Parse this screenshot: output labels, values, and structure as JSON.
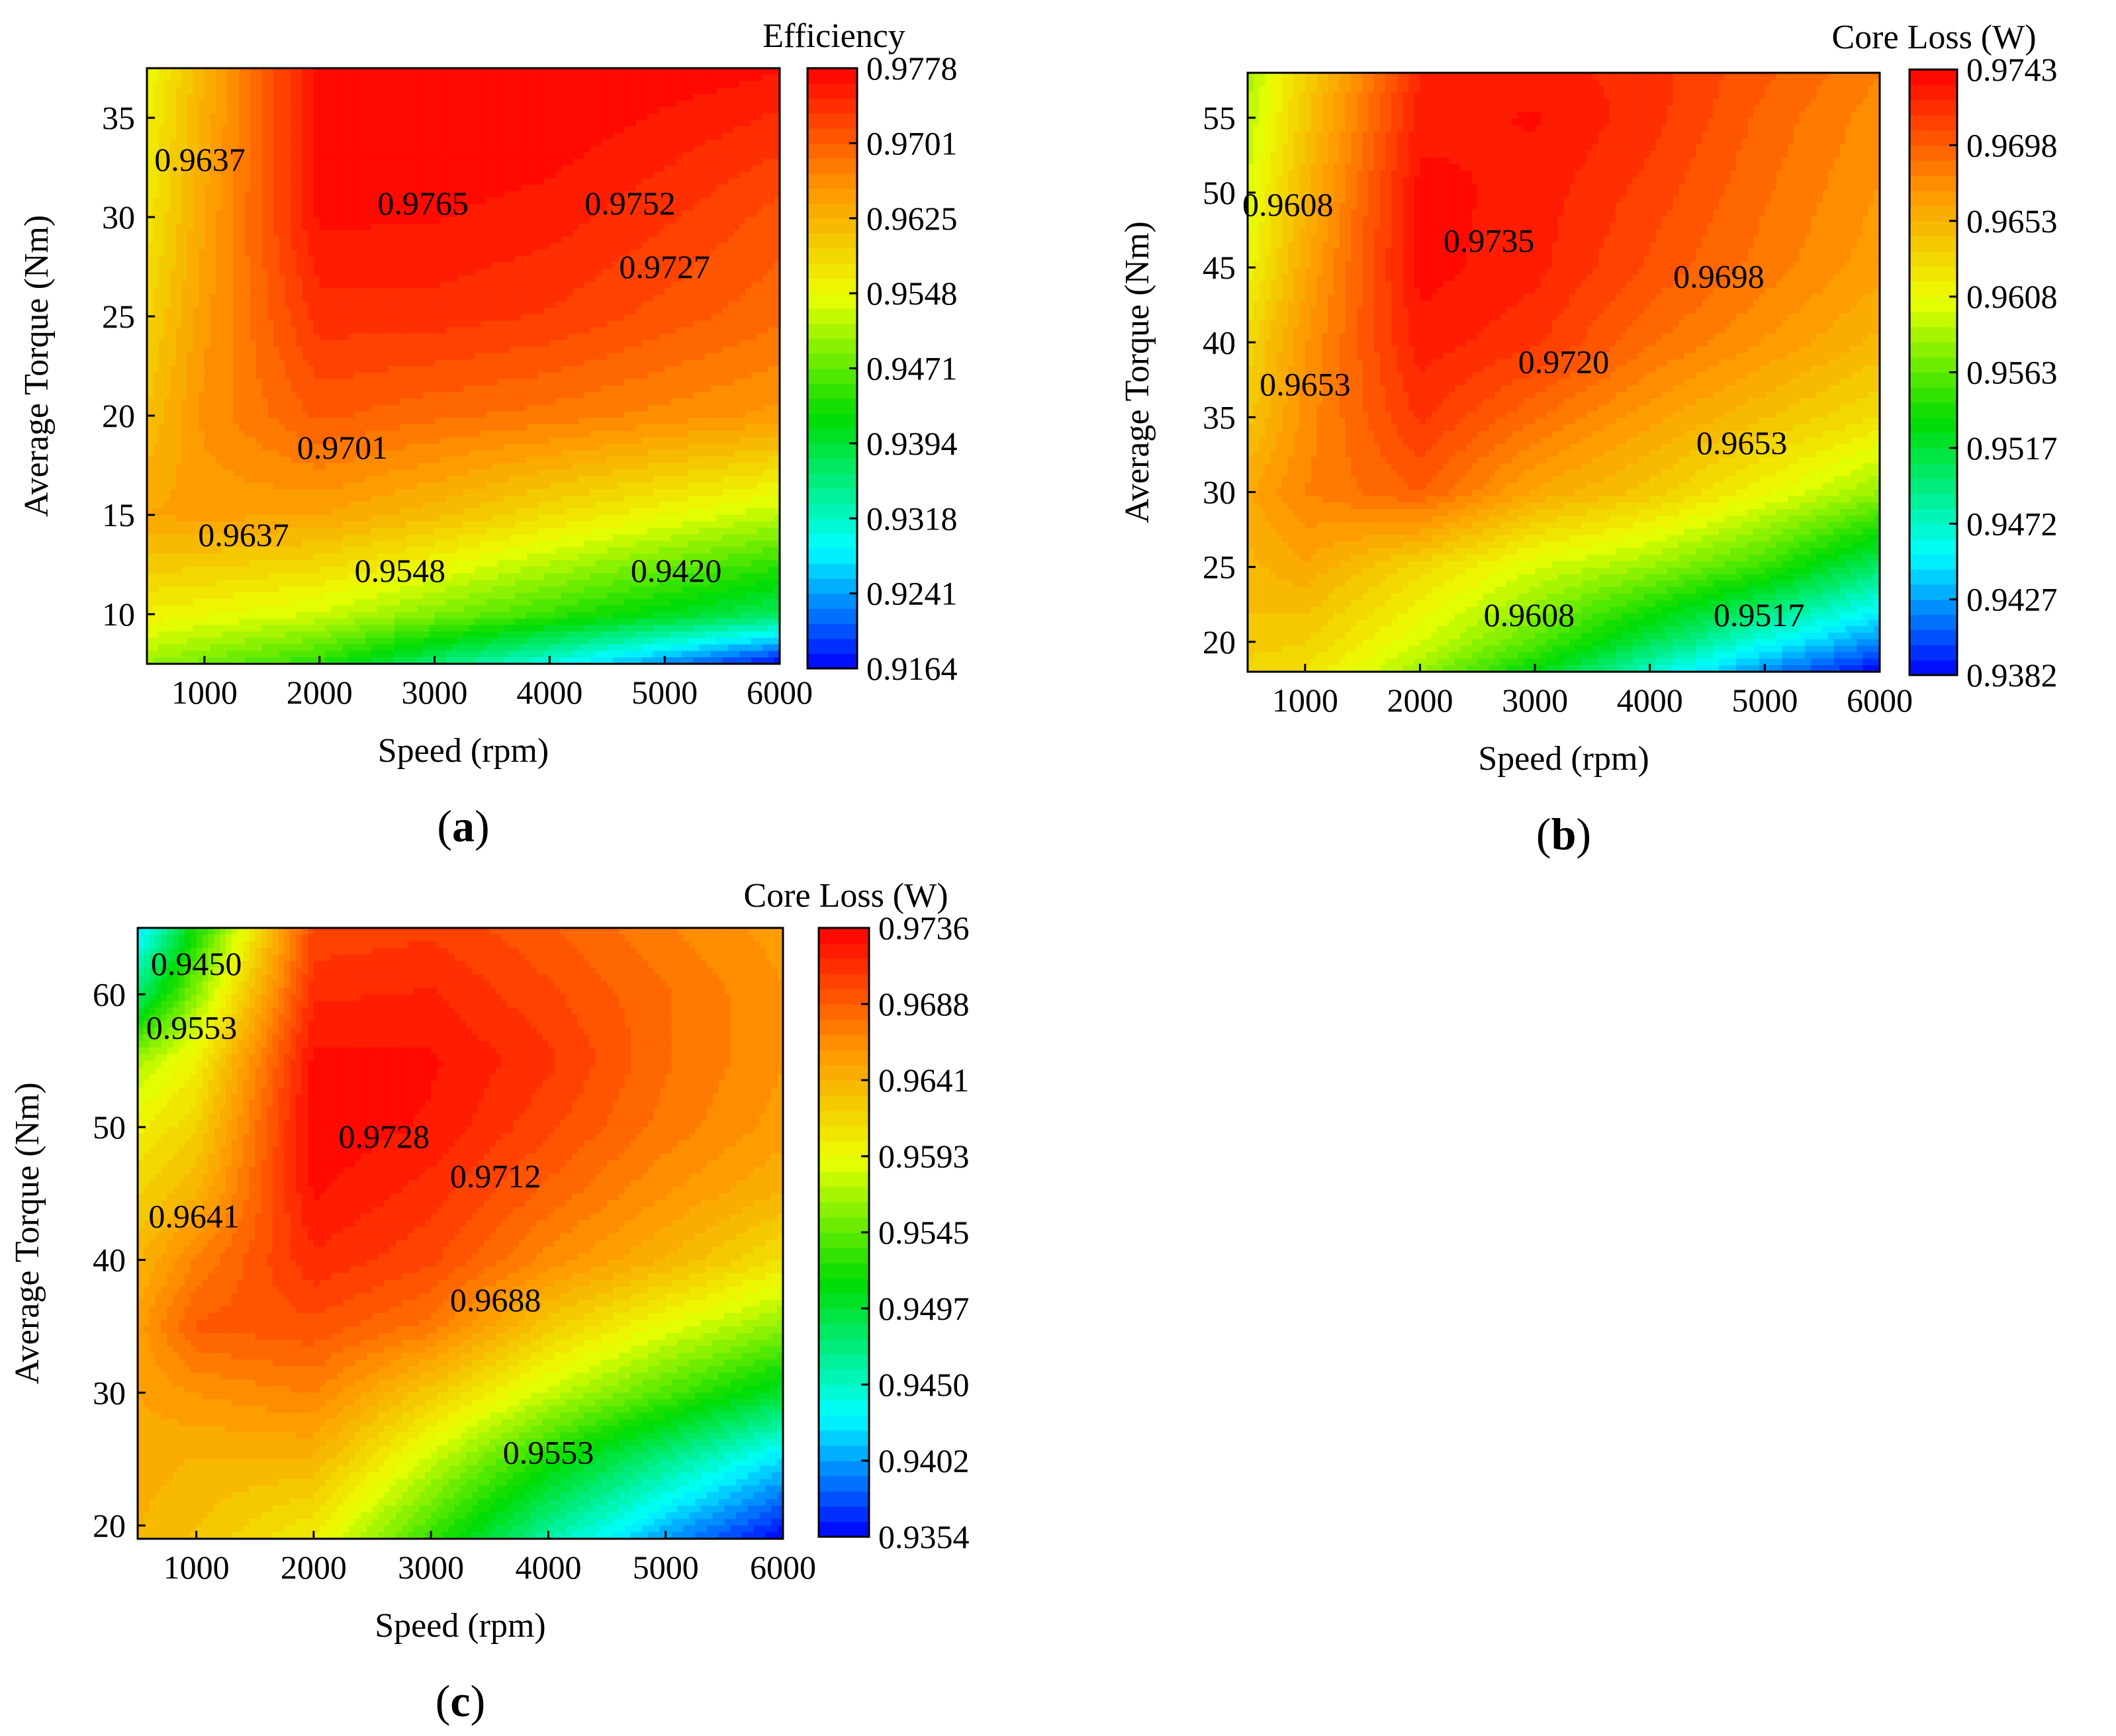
{
  "chart_data": [
    {
      "type": "heatmap",
      "subtype": "filled-contour",
      "panel_label": "a",
      "colorbar_title": "Efficiency",
      "xlabel": "Speed (rpm)",
      "ylabel": "Average Torque (Nm)",
      "xlim": [
        500,
        6000
      ],
      "ylim": [
        7.5,
        37.5
      ],
      "xticks": [
        "1000",
        "2000",
        "3000",
        "4000",
        "5000",
        "6000"
      ],
      "yticks": [
        "10",
        "15",
        "20",
        "25",
        "30",
        "35"
      ],
      "zrange": [
        0.9164,
        0.9778
      ],
      "colorbar_ticks": [
        "0.9778",
        "0.9701",
        "0.9625",
        "0.9548",
        "0.9471",
        "0.9394",
        "0.9318",
        "0.9241",
        "0.9164"
      ],
      "contour_labels": [
        {
          "text": "0.9637",
          "x": 960,
          "y": 32.9
        },
        {
          "text": "0.9765",
          "x": 2900,
          "y": 30.7
        },
        {
          "text": "0.9752",
          "x": 4700,
          "y": 30.7
        },
        {
          "text": "0.9727",
          "x": 5000,
          "y": 27.5
        },
        {
          "text": "0.9701",
          "x": 2200,
          "y": 18.4
        },
        {
          "text": "0.9637",
          "x": 1340,
          "y": 14.0
        },
        {
          "text": "0.9548",
          "x": 2700,
          "y": 12.2
        },
        {
          "text": "0.9420",
          "x": 5100,
          "y": 12.2
        }
      ],
      "z_grid": {
        "x": [
          500,
          1000,
          2000,
          3000,
          4000,
          5000,
          6000
        ],
        "y": [
          7.5,
          10,
          15,
          20,
          25,
          30,
          35,
          37.5
        ],
        "z": [
          [
            0.95,
            0.948,
            0.944,
            0.936,
            0.93,
            0.923,
            0.9164
          ],
          [
            0.956,
            0.955,
            0.953,
            0.949,
            0.945,
            0.941,
            0.937
          ],
          [
            0.964,
            0.9645,
            0.964,
            0.9615,
            0.958,
            0.955,
            0.952
          ],
          [
            0.961,
            0.966,
            0.9705,
            0.969,
            0.968,
            0.9665,
            0.965
          ],
          [
            0.959,
            0.965,
            0.974,
            0.974,
            0.973,
            0.971,
            0.969
          ],
          [
            0.957,
            0.964,
            0.9766,
            0.9764,
            0.9755,
            0.9735,
            0.971
          ],
          [
            0.956,
            0.963,
            0.977,
            0.9778,
            0.9775,
            0.976,
            0.9745
          ],
          [
            0.955,
            0.9625,
            0.9772,
            0.9778,
            0.9778,
            0.9775,
            0.9765
          ]
        ]
      }
    },
    {
      "type": "heatmap",
      "subtype": "filled-contour",
      "panel_label": "b",
      "colorbar_title": "Core Loss (W)",
      "xlabel": "Speed (rpm)",
      "ylabel": "Average Torque (Nm)",
      "xlim": [
        500,
        6000
      ],
      "ylim": [
        18,
        58
      ],
      "xticks": [
        "1000",
        "2000",
        "3000",
        "4000",
        "5000",
        "6000"
      ],
      "yticks": [
        "20",
        "25",
        "30",
        "35",
        "40",
        "45",
        "50",
        "55"
      ],
      "zrange": [
        0.9382,
        0.9743
      ],
      "colorbar_ticks": [
        "0.9743",
        "0.9698",
        "0.9653",
        "0.9608",
        "0.9563",
        "0.9517",
        "0.9472",
        "0.9427",
        "0.9382"
      ],
      "contour_labels": [
        {
          "text": "0.9608",
          "x": 850,
          "y": 49.2
        },
        {
          "text": "0.9735",
          "x": 2600,
          "y": 46.8
        },
        {
          "text": "0.9698",
          "x": 4600,
          "y": 44.4
        },
        {
          "text": "0.9720",
          "x": 3250,
          "y": 38.7
        },
        {
          "text": "0.9653",
          "x": 1000,
          "y": 37.2
        },
        {
          "text": "0.9653",
          "x": 4800,
          "y": 33.3
        },
        {
          "text": "0.9608",
          "x": 2950,
          "y": 21.8
        },
        {
          "text": "0.9517",
          "x": 4950,
          "y": 21.8
        }
      ],
      "z_grid": {
        "x": [
          500,
          1000,
          2000,
          3000,
          4000,
          5000,
          6000
        ],
        "y": [
          18,
          20,
          25,
          30,
          35,
          40,
          45,
          50,
          55,
          58
        ],
        "z": [
          [
            0.963,
            0.9625,
            0.958,
            0.953,
            0.947,
            0.942,
            0.9382
          ],
          [
            0.964,
            0.9635,
            0.96,
            0.956,
            0.951,
            0.946,
            0.942
          ],
          [
            0.965,
            0.966,
            0.963,
            0.96,
            0.958,
            0.955,
            0.95
          ],
          [
            0.966,
            0.968,
            0.9698,
            0.966,
            0.964,
            0.961,
            0.958
          ],
          [
            0.964,
            0.9675,
            0.9718,
            0.969,
            0.9665,
            0.9645,
            0.9625
          ],
          [
            0.963,
            0.967,
            0.973,
            0.9718,
            0.969,
            0.967,
            0.965
          ],
          [
            0.961,
            0.966,
            0.9738,
            0.9728,
            0.9705,
            0.9685,
            0.9665
          ],
          [
            0.96,
            0.965,
            0.9738,
            0.973,
            0.9712,
            0.969,
            0.967
          ],
          [
            0.959,
            0.964,
            0.973,
            0.9735,
            0.972,
            0.9695,
            0.9675
          ],
          [
            0.9585,
            0.9635,
            0.9725,
            0.973,
            0.972,
            0.97,
            0.968
          ]
        ]
      }
    },
    {
      "type": "heatmap",
      "subtype": "filled-contour",
      "panel_label": "c",
      "colorbar_title": "Core Loss (W)",
      "xlabel": "Speed (rpm)",
      "ylabel": "Average Torque (Nm)",
      "xlim": [
        500,
        6000
      ],
      "ylim": [
        19,
        65
      ],
      "xticks": [
        "1000",
        "2000",
        "3000",
        "4000",
        "5000",
        "6000"
      ],
      "yticks": [
        "20",
        "30",
        "40",
        "50",
        "60"
      ],
      "zrange": [
        0.9354,
        0.9736
      ],
      "colorbar_ticks": [
        "0.9736",
        "0.9688",
        "0.9641",
        "0.9593",
        "0.9545",
        "0.9497",
        "0.9450",
        "0.9402",
        "0.9354"
      ],
      "contour_labels": [
        {
          "text": "0.9450",
          "x": 1000,
          "y": 62.3
        },
        {
          "text": "0.9553",
          "x": 960,
          "y": 57.5
        },
        {
          "text": "0.9728",
          "x": 2600,
          "y": 49.3
        },
        {
          "text": "0.9712",
          "x": 3550,
          "y": 46.3
        },
        {
          "text": "0.9641",
          "x": 980,
          "y": 43.3
        },
        {
          "text": "0.9688",
          "x": 3550,
          "y": 37.0
        },
        {
          "text": "0.9553",
          "x": 4000,
          "y": 25.5
        }
      ],
      "z_grid": {
        "x": [
          500,
          1000,
          2000,
          3000,
          4000,
          5000,
          6000
        ],
        "y": [
          19,
          25,
          30,
          35,
          40,
          45,
          50,
          55,
          60,
          65
        ],
        "z": [
          [
            0.964,
            0.963,
            0.96,
            0.953,
            0.946,
            0.94,
            0.9354
          ],
          [
            0.9645,
            0.964,
            0.964,
            0.958,
            0.952,
            0.947,
            0.942
          ],
          [
            0.965,
            0.966,
            0.967,
            0.9625,
            0.958,
            0.954,
            0.95
          ],
          [
            0.9655,
            0.969,
            0.9695,
            0.9675,
            0.9625,
            0.959,
            0.956
          ],
          [
            0.964,
            0.967,
            0.9715,
            0.97,
            0.9665,
            0.964,
            0.961
          ],
          [
            0.962,
            0.964,
            0.9728,
            0.9712,
            0.9685,
            0.966,
            0.964
          ],
          [
            0.96,
            0.962,
            0.9734,
            0.9725,
            0.97,
            0.9675,
            0.9655
          ],
          [
            0.957,
            0.96,
            0.973,
            0.9728,
            0.971,
            0.968,
            0.966
          ],
          [
            0.948,
            0.956,
            0.9715,
            0.9718,
            0.97,
            0.968,
            0.966
          ],
          [
            0.942,
            0.952,
            0.97,
            0.9705,
            0.969,
            0.967,
            0.9655
          ]
        ]
      }
    }
  ]
}
